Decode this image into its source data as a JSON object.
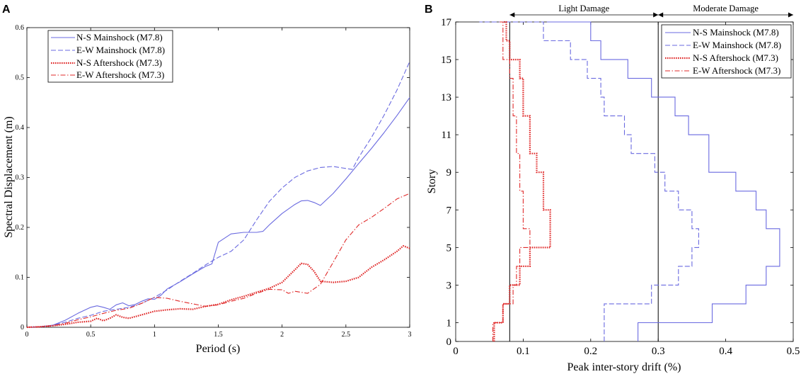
{
  "chart_data": [
    {
      "panel": "A",
      "type": "line",
      "xlabel": "Period (s)",
      "ylabel": "Spectral Displacement (m)",
      "xlim": [
        0,
        3
      ],
      "ylim": [
        0,
        0.6
      ],
      "xticks": [
        0,
        0.5,
        1,
        1.5,
        2,
        2.5,
        3
      ],
      "xtick_labels": [
        "0",
        "0.5",
        "1",
        "1.5",
        "2",
        "2.5",
        "3"
      ],
      "yticks": [
        0,
        0.1,
        0.2,
        0.3,
        0.4,
        0.5,
        0.6
      ],
      "ytick_labels": [
        "0",
        "0.1",
        "0.2",
        "0.3",
        "0.4",
        "0.5",
        "0.6"
      ],
      "legend_position": "top-left",
      "grid": false,
      "series": [
        {
          "name": "N-S Mainshock (M7.8)",
          "color": "#6a6ae0",
          "style": "solid",
          "x": [
            0,
            0.1,
            0.2,
            0.3,
            0.4,
            0.5,
            0.55,
            0.6,
            0.65,
            0.7,
            0.75,
            0.8,
            0.85,
            0.9,
            0.95,
            1.0,
            1.05,
            1.1,
            1.2,
            1.3,
            1.4,
            1.45,
            1.5,
            1.6,
            1.7,
            1.8,
            1.85,
            1.9,
            2.0,
            2.1,
            2.15,
            2.2,
            2.25,
            2.3,
            2.4,
            2.5,
            2.6,
            2.7,
            2.8,
            2.9,
            3.0
          ],
          "y": [
            0,
            0.001,
            0.004,
            0.014,
            0.028,
            0.04,
            0.043,
            0.04,
            0.036,
            0.045,
            0.049,
            0.043,
            0.046,
            0.052,
            0.057,
            0.056,
            0.064,
            0.077,
            0.091,
            0.107,
            0.122,
            0.127,
            0.17,
            0.187,
            0.19,
            0.19,
            0.192,
            0.205,
            0.228,
            0.246,
            0.253,
            0.254,
            0.25,
            0.244,
            0.268,
            0.297,
            0.328,
            0.358,
            0.39,
            0.424,
            0.46
          ]
        },
        {
          "name": "E-W Mainshock (M7.8)",
          "color": "#6a6ae0",
          "style": "dashed",
          "x": [
            0,
            0.1,
            0.2,
            0.3,
            0.4,
            0.5,
            0.6,
            0.7,
            0.8,
            0.9,
            1.0,
            1.1,
            1.2,
            1.3,
            1.4,
            1.5,
            1.6,
            1.7,
            1.8,
            1.9,
            2.0,
            2.1,
            2.2,
            2.3,
            2.4,
            2.5,
            2.55,
            2.6,
            2.7,
            2.8,
            2.9,
            3.0
          ],
          "y": [
            0,
            0.001,
            0.004,
            0.01,
            0.018,
            0.024,
            0.032,
            0.036,
            0.04,
            0.048,
            0.06,
            0.075,
            0.092,
            0.108,
            0.125,
            0.14,
            0.152,
            0.175,
            0.215,
            0.252,
            0.279,
            0.3,
            0.313,
            0.32,
            0.322,
            0.318,
            0.316,
            0.34,
            0.38,
            0.425,
            0.475,
            0.532
          ]
        },
        {
          "name": "N-S Aftershock (M7.3)",
          "color": "#e02a2a",
          "style": "dotted",
          "x": [
            0,
            0.1,
            0.2,
            0.3,
            0.4,
            0.5,
            0.55,
            0.6,
            0.65,
            0.7,
            0.75,
            0.8,
            0.9,
            1.0,
            1.1,
            1.2,
            1.3,
            1.4,
            1.5,
            1.6,
            1.7,
            1.8,
            1.9,
            2.0,
            2.1,
            2.15,
            2.2,
            2.25,
            2.3,
            2.4,
            2.5,
            2.6,
            2.7,
            2.8,
            2.9,
            2.95,
            3.0
          ],
          "y": [
            0,
            0.001,
            0.003,
            0.006,
            0.01,
            0.012,
            0.018,
            0.013,
            0.018,
            0.025,
            0.02,
            0.018,
            0.025,
            0.032,
            0.035,
            0.037,
            0.036,
            0.042,
            0.046,
            0.055,
            0.062,
            0.07,
            0.078,
            0.09,
            0.115,
            0.128,
            0.126,
            0.112,
            0.092,
            0.09,
            0.092,
            0.1,
            0.12,
            0.135,
            0.152,
            0.163,
            0.158
          ]
        },
        {
          "name": "E-W Aftershock (M7.3)",
          "color": "#e02a2a",
          "style": "dashdot",
          "x": [
            0,
            0.1,
            0.2,
            0.3,
            0.4,
            0.5,
            0.6,
            0.7,
            0.8,
            0.9,
            1.0,
            1.1,
            1.2,
            1.3,
            1.4,
            1.5,
            1.6,
            1.7,
            1.8,
            1.9,
            2.0,
            2.05,
            2.1,
            2.2,
            2.3,
            2.4,
            2.5,
            2.6,
            2.7,
            2.8,
            2.9,
            3.0
          ],
          "y": [
            0,
            0.001,
            0.003,
            0.008,
            0.015,
            0.021,
            0.028,
            0.034,
            0.038,
            0.048,
            0.06,
            0.058,
            0.052,
            0.047,
            0.042,
            0.045,
            0.052,
            0.058,
            0.068,
            0.076,
            0.075,
            0.068,
            0.072,
            0.068,
            0.086,
            0.13,
            0.175,
            0.205,
            0.22,
            0.238,
            0.257,
            0.268
          ]
        }
      ]
    },
    {
      "panel": "B",
      "type": "line",
      "xlabel": "Peak inter-story drift (%)",
      "ylabel": "Story",
      "xlim": [
        0,
        0.5
      ],
      "ylim": [
        0,
        17
      ],
      "xticks": [
        0,
        0.1,
        0.2,
        0.3,
        0.4,
        0.5
      ],
      "xtick_labels": [
        "0",
        "0.1",
        "0.2",
        "0.3",
        "0.4",
        "0.5"
      ],
      "yticks": [
        0,
        1,
        3,
        5,
        7,
        9,
        11,
        13,
        15,
        17
      ],
      "ytick_labels": [
        "0",
        "1",
        "3",
        "5",
        "7",
        "9",
        "11",
        "13",
        "15",
        "17"
      ],
      "legend_position": "top-right",
      "grid": false,
      "damage_thresholds": [
        0.08,
        0.3
      ],
      "damage_zones": [
        {
          "label": "Light Damage",
          "from": 0.08,
          "to": 0.3
        },
        {
          "label": "Moderate Damage",
          "from": 0.3,
          "to": 0.5
        }
      ],
      "series": [
        {
          "name": "N-S Mainshock (M7.8)",
          "color": "#6a6ae0",
          "style": "solid",
          "story_values": [
            0.27,
            0.38,
            0.43,
            0.46,
            0.48,
            0.48,
            0.46,
            0.445,
            0.415,
            0.375,
            0.375,
            0.345,
            0.325,
            0.29,
            0.255,
            0.215,
            0.2,
            0.135
          ]
        },
        {
          "name": "E-W Mainshock (M7.8)",
          "color": "#6a6ae0",
          "style": "dashed",
          "story_values": [
            0.22,
            0.22,
            0.29,
            0.33,
            0.35,
            0.36,
            0.35,
            0.33,
            0.31,
            0.295,
            0.26,
            0.25,
            0.22,
            0.215,
            0.195,
            0.17,
            0.13,
            0.035
          ]
        },
        {
          "name": "N-S Aftershock (M7.3)",
          "color": "#e02a2a",
          "style": "dotted",
          "story_values": [
            0.057,
            0.07,
            0.08,
            0.095,
            0.11,
            0.14,
            0.14,
            0.13,
            0.13,
            0.12,
            0.11,
            0.11,
            0.1,
            0.1,
            0.095,
            0.08,
            0.075,
            0.07
          ]
        },
        {
          "name": "E-W Aftershock (M7.3)",
          "color": "#e02a2a",
          "style": "dashdot",
          "story_values": [
            0.055,
            0.07,
            0.085,
            0.09,
            0.095,
            0.11,
            0.1,
            0.1,
            0.095,
            0.095,
            0.09,
            0.09,
            0.085,
            0.085,
            0.08,
            0.07,
            0.07,
            0.065
          ]
        }
      ]
    }
  ]
}
